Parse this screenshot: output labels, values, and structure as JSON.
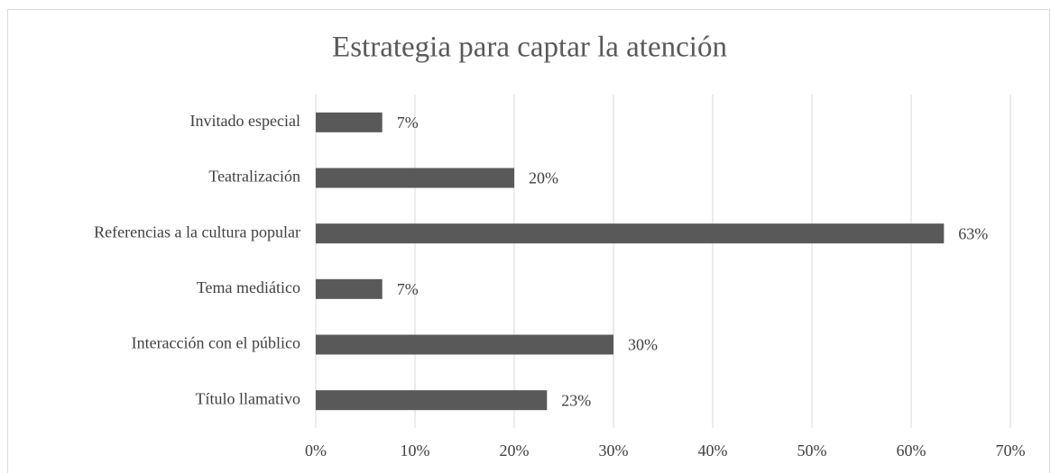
{
  "chart_data": {
    "type": "bar",
    "orientation": "horizontal",
    "title": "Estrategia para captar la atención",
    "categories": [
      "Invitado especial",
      "Teatralización",
      "Referencias a la cultura popular",
      "Tema mediático",
      "Interacción con el público",
      "Título llamativo"
    ],
    "values": [
      6.7,
      20,
      63.3,
      6.7,
      30,
      23.3
    ],
    "value_labels": [
      "7%",
      "20%",
      "63%",
      "7%",
      "30%",
      "23%"
    ],
    "color": "#595959",
    "xlim": [
      0,
      70
    ],
    "xticks": [
      {
        "value": 0,
        "label": "0%"
      },
      {
        "value": 10,
        "label": "10%"
      },
      {
        "value": 20,
        "label": "20%"
      },
      {
        "value": 30,
        "label": "30%"
      },
      {
        "value": 40,
        "label": "40%"
      },
      {
        "value": 50,
        "label": "50%"
      },
      {
        "value": 60,
        "label": "60%"
      },
      {
        "value": 70,
        "label": "70%"
      }
    ],
    "grid": true
  }
}
